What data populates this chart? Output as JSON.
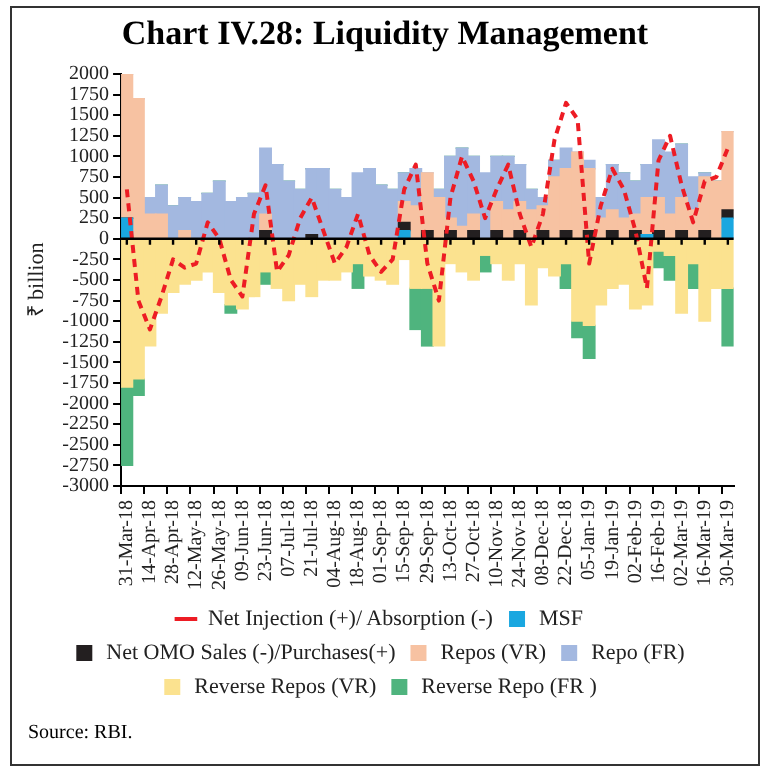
{
  "chart_data": {
    "type": "bar",
    "title": "Chart IV.28: Liquidity Management",
    "ylabel": "₹ billion",
    "stacked": true,
    "grid": false,
    "legend": "bottom",
    "line_style": "dashed",
    "marker": "none",
    "annotations": [
      "Source: RBI."
    ],
    "ylim": [
      -3000,
      2000
    ],
    "yticks": [
      -3000,
      -2750,
      -2500,
      -2250,
      -2000,
      -1750,
      -1500,
      -1250,
      -1000,
      -750,
      -500,
      -250,
      0,
      250,
      500,
      750,
      1000,
      1250,
      1500,
      1750,
      2000
    ],
    "ref_lines": [
      {
        "axis": "y",
        "value": 0,
        "color": "#000000"
      }
    ],
    "categories": [
      "31-Mar-18",
      null,
      "14-Apr-18",
      null,
      "28-Apr-18",
      null,
      "12-May-18",
      null,
      "26-May-18",
      null,
      "09-Jun-18",
      null,
      "23-Jun-18",
      null,
      "07-Jul-18",
      null,
      "21-Jul-18",
      null,
      "04-Aug-18",
      null,
      "18-Aug-18",
      null,
      "01-Sep-18",
      null,
      "15-Sep-18",
      null,
      "29-Sep-18",
      null,
      "13-Oct-18",
      null,
      "27-Oct-18",
      null,
      "10-Nov-18",
      null,
      "24-Nov-18",
      null,
      "08-Dec-18",
      null,
      "22-Dec-18",
      null,
      "05-Jan-19",
      null,
      "19-Jan-19",
      null,
      "02-Feb-19",
      null,
      "16-Feb-19",
      null,
      "02-Mar-19",
      null,
      "16-Mar-19",
      null,
      "30-Mar-19"
    ],
    "series": [
      {
        "name": "MSF",
        "color": "#1aa7e0",
        "values": [
          250,
          0,
          0,
          0,
          0,
          0,
          0,
          0,
          0,
          0,
          0,
          0,
          0,
          0,
          0,
          0,
          0,
          0,
          0,
          0,
          0,
          0,
          0,
          0,
          100,
          0,
          0,
          0,
          0,
          0,
          0,
          0,
          0,
          0,
          0,
          0,
          0,
          0,
          0,
          0,
          0,
          0,
          0,
          0,
          0,
          50,
          0,
          0,
          0,
          0,
          0,
          0,
          250
        ]
      },
      {
        "name": "Net OMO Sales (-)/Purchases(+)",
        "color": "#231f20",
        "values": [
          0,
          0,
          0,
          0,
          0,
          0,
          0,
          0,
          0,
          0,
          0,
          0,
          100,
          0,
          0,
          0,
          50,
          0,
          0,
          0,
          0,
          0,
          0,
          0,
          100,
          0,
          100,
          0,
          100,
          0,
          100,
          0,
          100,
          0,
          100,
          0,
          100,
          0,
          100,
          0,
          100,
          0,
          100,
          0,
          100,
          0,
          100,
          0,
          100,
          0,
          100,
          0,
          100
        ]
      },
      {
        "name": "Repos (VR)",
        "color": "#f7c2a2",
        "values": [
          1750,
          1700,
          300,
          300,
          0,
          100,
          0,
          0,
          0,
          0,
          0,
          0,
          200,
          0,
          0,
          0,
          0,
          0,
          0,
          0,
          0,
          0,
          0,
          0,
          250,
          400,
          700,
          500,
          150,
          150,
          200,
          0,
          350,
          350,
          350,
          350,
          300,
          750,
          750,
          1050,
          750,
          250,
          250,
          250,
          200,
          450,
          400,
          300,
          400,
          350,
          650,
          700,
          950
        ]
      },
      {
        "name": "Repo (FR)",
        "color": "#a3b8e0",
        "values": [
          0,
          0,
          200,
          350,
          400,
          400,
          450,
          550,
          700,
          450,
          500,
          550,
          800,
          900,
          700,
          600,
          800,
          850,
          600,
          500,
          800,
          850,
          650,
          600,
          350,
          450,
          0,
          100,
          750,
          950,
          700,
          800,
          550,
          650,
          450,
          250,
          100,
          200,
          250,
          0,
          100,
          250,
          550,
          550,
          400,
          400,
          700,
          750,
          650,
          400,
          50,
          0,
          0
        ]
      },
      {
        "name": "Reverse Repos (VR)",
        "color": "#fbe28f",
        "values": [
          -1800,
          -1700,
          -1300,
          -900,
          -650,
          -550,
          -500,
          -400,
          -650,
          -800,
          -850,
          -700,
          -400,
          -600,
          -750,
          -550,
          -700,
          -500,
          -500,
          -400,
          -300,
          -450,
          -500,
          -550,
          -250,
          -600,
          -600,
          -1300,
          -300,
          -400,
          -500,
          -200,
          -300,
          -500,
          -300,
          -800,
          -350,
          -450,
          -300,
          -1000,
          -1050,
          -800,
          -600,
          -550,
          -850,
          -800,
          -150,
          -200,
          -900,
          -300,
          -1000,
          -600,
          -600
        ]
      },
      {
        "name": "Reverse Repo (FR )",
        "color": "#4fb47e",
        "values": [
          -950,
          -200,
          0,
          0,
          0,
          0,
          0,
          0,
          0,
          -100,
          0,
          0,
          -150,
          0,
          0,
          0,
          0,
          0,
          0,
          0,
          -300,
          0,
          0,
          0,
          0,
          -500,
          -700,
          0,
          0,
          0,
          0,
          -200,
          0,
          0,
          0,
          0,
          0,
          0,
          -300,
          -200,
          -400,
          0,
          0,
          0,
          0,
          0,
          -200,
          -300,
          0,
          -300,
          0,
          0,
          -700
        ]
      },
      {
        "name": "Net Injection (+)/ Absorption (-)",
        "type": "line",
        "color": "#ed1c24",
        "values": [
          600,
          -750,
          -1100,
          -700,
          -250,
          -350,
          -300,
          200,
          0,
          -500,
          -700,
          300,
          650,
          -400,
          -200,
          250,
          500,
          100,
          -300,
          -100,
          300,
          -200,
          -400,
          -250,
          600,
          900,
          -300,
          -750,
          500,
          1000,
          700,
          250,
          600,
          900,
          300,
          -100,
          300,
          1200,
          1650,
          1450,
          -300,
          400,
          850,
          600,
          100,
          -600,
          950,
          1250,
          650,
          200,
          700,
          750,
          1100
        ]
      }
    ]
  }
}
